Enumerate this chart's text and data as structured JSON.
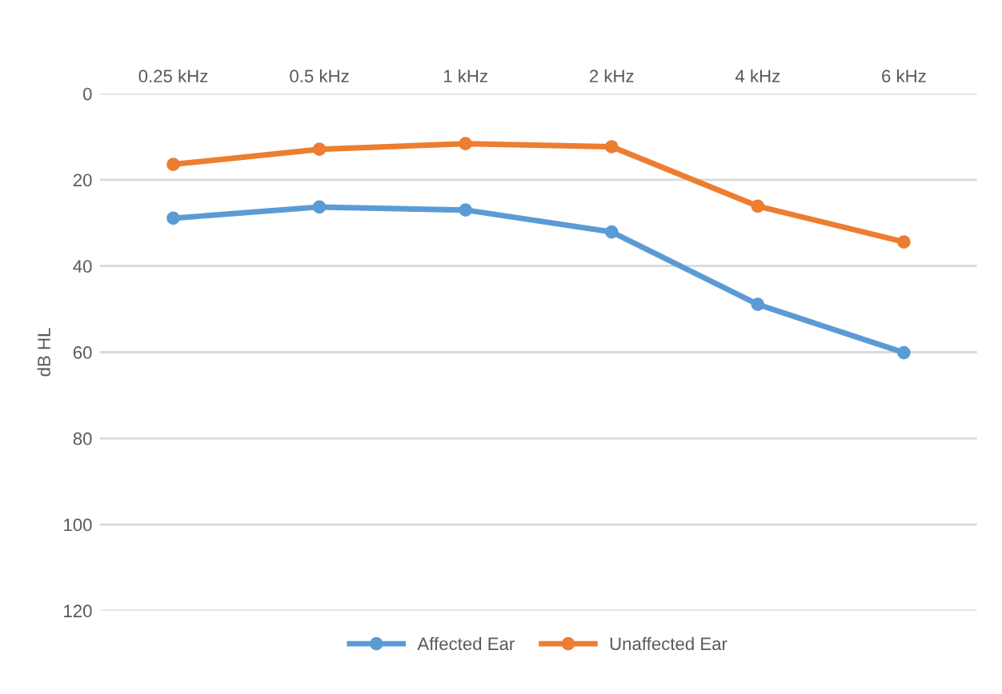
{
  "chart_data": {
    "type": "line",
    "ylabel": "dB HL",
    "categories": [
      "0.25 kHz",
      "0.5 kHz",
      "1 kHz",
      "2 kHz",
      "4 kHz",
      "6 kHz"
    ],
    "series": [
      {
        "name": "Affected Ear",
        "color": "#5b9bd5",
        "values": [
          28.9,
          26.3,
          27,
          32.1,
          48.9,
          60.1
        ]
      },
      {
        "name": "Unaffected Ear",
        "color": "#ed7d31",
        "values": [
          16.4,
          12.9,
          11.6,
          12.3,
          26.1,
          34.4
        ]
      }
    ],
    "ylim": [
      120,
      0
    ],
    "yticks": [
      0,
      20,
      40,
      60,
      80,
      100,
      120
    ],
    "grid": "y",
    "legend": "bottom",
    "marker": "circle",
    "line_style": "solid"
  }
}
